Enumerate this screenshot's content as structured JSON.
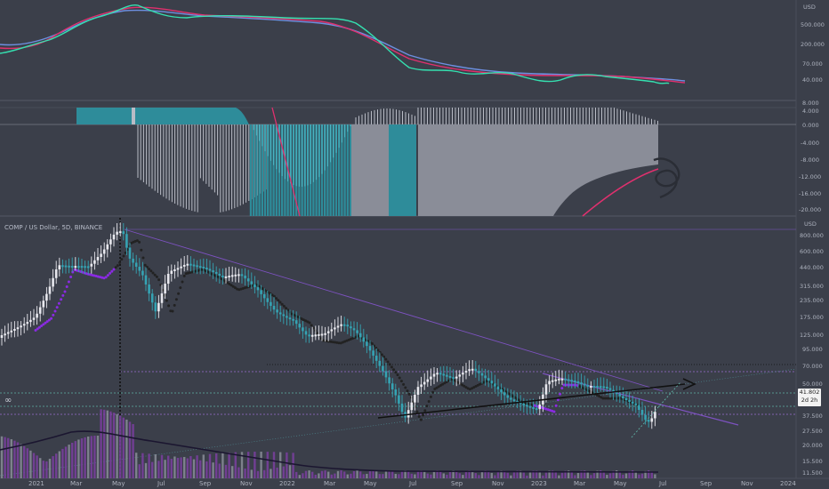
{
  "symbol_title": "COMP / US Dollar, 5D, BINANCE",
  "infinity_glyph": "∞",
  "price_box": {
    "price": "41.802",
    "countdown": "2d 2h"
  },
  "colors": {
    "background": "#3b3f4a",
    "rsi_green": "#35e0b0",
    "rsi_pink": "#e0306e",
    "rsi_blue": "#6d8fe0",
    "hist_teal": "#2e8c9a",
    "hist_grey": "#8a8d98",
    "candle_teal": "#35a3b3",
    "candle_white": "#e8e8ee",
    "ma_purple": "#8a2be2",
    "trend_black": "#111111",
    "volume_purple": "#7b3fa0"
  },
  "top_axis": {
    "unit_label": "USD",
    "ticks": [
      "500.000",
      "200.000",
      "70.000",
      "40.000"
    ]
  },
  "mid_axis": {
    "ticks": [
      "8.000",
      "4.000",
      "0.000",
      "-4.000",
      "-8.000",
      "-12.000",
      "-16.000",
      "-20.000"
    ]
  },
  "main_axis": {
    "unit_label": "USD",
    "ticks": [
      "800.000",
      "600.000",
      "440.000",
      "315.000",
      "235.000",
      "175.000",
      "125.000",
      "95.000",
      "70.000",
      "50.000",
      "37.500",
      "27.500",
      "20.000",
      "15.500",
      "11.500"
    ]
  },
  "x_axis": {
    "labels": [
      "2021",
      "Mar",
      "May",
      "Jul",
      "Sep",
      "Nov",
      "2022",
      "Mar",
      "May",
      "Jul",
      "Sep",
      "Nov",
      "2023",
      "Mar",
      "May",
      "Jul",
      "Sep",
      "Nov",
      "2024"
    ]
  },
  "chart_data": {
    "type": "line",
    "title": "COMP / US Dollar, 5D, BINANCE",
    "x_axis_labels": [
      "2021",
      "Mar",
      "May",
      "Jul",
      "Sep",
      "Nov",
      "2022",
      "Mar",
      "May",
      "Jul",
      "Sep",
      "Nov",
      "2023",
      "Mar",
      "May",
      "Jul",
      "Sep",
      "Nov",
      "2024"
    ],
    "price_scale": "log",
    "y_range": [
      11.5,
      800
    ],
    "last_price": 41.802,
    "price_series_approx": [
      {
        "x": "2021",
        "y": 150
      },
      {
        "x": "Mar",
        "y": 430
      },
      {
        "x": "May",
        "y": 820
      },
      {
        "x": "Jul",
        "y": 340
      },
      {
        "x": "Sep",
        "y": 380
      },
      {
        "x": "Nov",
        "y": 300
      },
      {
        "x": "2022",
        "y": 170
      },
      {
        "x": "Mar",
        "y": 120
      },
      {
        "x": "May",
        "y": 80
      },
      {
        "x": "Jul",
        "y": 55
      },
      {
        "x": "Sep",
        "y": 60
      },
      {
        "x": "Nov",
        "y": 42
      },
      {
        "x": "2023",
        "y": 38
      },
      {
        "x": "Mar",
        "y": 55
      },
      {
        "x": "May",
        "y": 38
      },
      {
        "x": "Jul",
        "y": 41.8
      }
    ]
  }
}
